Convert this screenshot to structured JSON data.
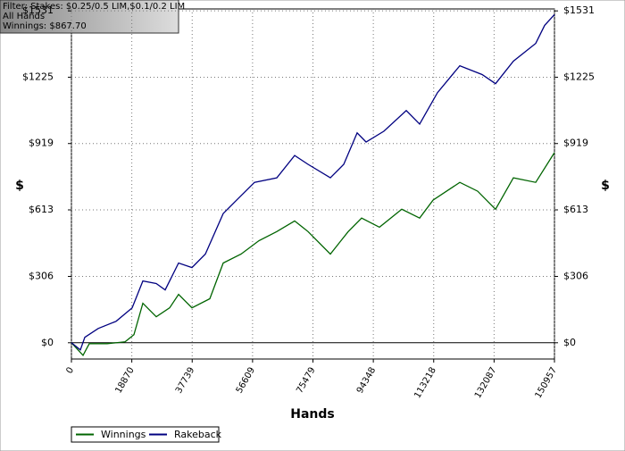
{
  "filter": [
    "Filter: Stakes: $0.25/0.5 LIM,$0.1/0.2 LIM",
    "All Hands",
    "Winnings: $867.70"
  ],
  "chart_data": {
    "type": "line",
    "x_label": "Hands",
    "y_label": "$",
    "y2_label": "$",
    "xlim": [
      0,
      150957
    ],
    "xticks": [
      0,
      18870,
      37739,
      56609,
      75479,
      94348,
      113218,
      132087,
      150957
    ],
    "ylim": [
      -75,
      1540
    ],
    "yticks": [
      {
        "value": 0,
        "label": "$0"
      },
      {
        "value": 306,
        "label": "$306"
      },
      {
        "value": 613,
        "label": "$613"
      },
      {
        "value": 919,
        "label": "$919"
      },
      {
        "value": 1225,
        "label": "$1225"
      },
      {
        "value": 1531,
        "label": "$1531"
      }
    ],
    "grid": true,
    "series": [
      {
        "name": "Winnings",
        "color": "#006400",
        "x": [
          0,
          3627,
          5581,
          11162,
          16743,
          19533,
          22322,
          26507,
          30693,
          33483,
          37669,
          43249,
          47435,
          53016,
          58596,
          64176,
          69757,
          73943,
          80919,
          86500,
          90685,
          96266,
          103242,
          108823,
          113008,
          121379,
          126960,
          132541,
          138122,
          145098,
          150957
        ],
        "values": [
          0,
          -58,
          -4,
          -4,
          4,
          37,
          182,
          120,
          161,
          223,
          161,
          203,
          368,
          409,
          471,
          513,
          562,
          513,
          409,
          513,
          575,
          533,
          616,
          575,
          658,
          740,
          699,
          616,
          761,
          740,
          877
        ]
      },
      {
        "name": "Rakeback",
        "color": "#000080",
        "x": [
          0,
          2790,
          4186,
          8371,
          13952,
          18974,
          22322,
          26507,
          29297,
          33483,
          37669,
          41854,
          47435,
          51620,
          57200,
          64176,
          69757,
          73943,
          80919,
          85104,
          89290,
          92080,
          97661,
          104637,
          108823,
          114403,
          121379,
          128355,
          132541,
          138122,
          145098,
          147888,
          150957
        ],
        "values": [
          0,
          -33,
          25,
          66,
          99,
          161,
          285,
          273,
          244,
          368,
          347,
          409,
          596,
          658,
          740,
          761,
          864,
          823,
          761,
          823,
          968,
          926,
          976,
          1071,
          1009,
          1154,
          1278,
          1237,
          1195,
          1299,
          1381,
          1464,
          1514
        ]
      }
    ]
  }
}
